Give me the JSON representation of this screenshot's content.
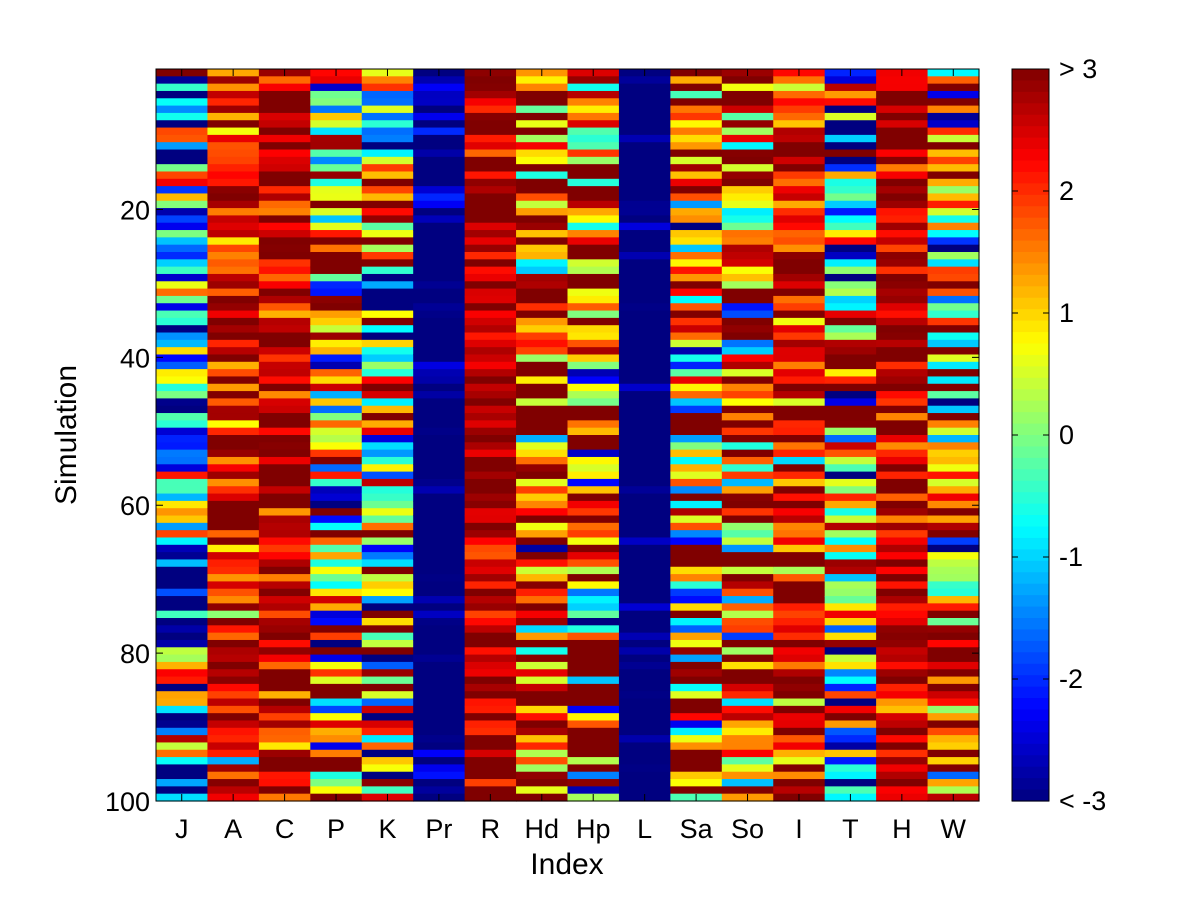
{
  "chart_data": {
    "type": "heatmap",
    "title": "",
    "xlabel": "Index",
    "ylabel": "Simulation",
    "x_categories": [
      "J",
      "A",
      "C",
      "P",
      "K",
      "Pr",
      "R",
      "Hd",
      "Hp",
      "L",
      "Sa",
      "So",
      "I",
      "T",
      "H",
      "W"
    ],
    "rows": 100,
    "y_ticks": [
      20,
      40,
      60,
      80,
      100
    ],
    "ylim": [
      1,
      100
    ],
    "y_direction": "top-to-bottom",
    "color_scale": {
      "min": -3,
      "max": 3,
      "colormap": "jet",
      "ticks": [
        3,
        2,
        1,
        0,
        -1,
        -2,
        -3
      ],
      "tick_labels": [
        "> 3",
        "2",
        "1",
        "0",
        "-1",
        "-2",
        "< -3"
      ],
      "clip_low_label": "< -3",
      "clip_high_label": "> 3"
    },
    "column_patterns": {
      "J": {
        "description": "mixed, dominated by strong negatives with scattered positives",
        "center": -1.2,
        "spread": 2.3
      },
      "A": {
        "description": "mostly strongly positive",
        "center": 2.4,
        "spread": 0.9
      },
      "C": {
        "description": "mostly strongly positive",
        "center": 2.6,
        "spread": 0.8
      },
      "P": {
        "description": "mixed",
        "center": 0.9,
        "spread": 2.2
      },
      "K": {
        "description": "mixed",
        "center": 0.2,
        "spread": 2.3
      },
      "Pr": {
        "description": "almost entirely strongly negative",
        "center": -3.2,
        "spread": 0.5
      },
      "R": {
        "description": "almost entirely strongly positive",
        "center": 2.8,
        "spread": 0.5
      },
      "Hd": {
        "description": "mostly positive",
        "center": 1.8,
        "spread": 1.6
      },
      "Hp": {
        "description": "mostly positive",
        "center": 1.5,
        "spread": 1.8
      },
      "L": {
        "description": "almost entirely strongly negative",
        "center": -3.3,
        "spread": 0.4
      },
      "Sa": {
        "description": "mostly positive, mixed",
        "center": 1.4,
        "spread": 2.0
      },
      "So": {
        "description": "mostly positive, mixed",
        "center": 1.6,
        "spread": 1.8
      },
      "I": {
        "description": "mostly strongly positive",
        "center": 2.5,
        "spread": 0.9
      },
      "T": {
        "description": "mixed, tending negative",
        "center": -0.4,
        "spread": 2.4
      },
      "H": {
        "description": "almost entirely strongly positive",
        "center": 2.6,
        "spread": 0.7
      },
      "W": {
        "description": "mixed, tending positive",
        "center": 1.1,
        "spread": 1.9
      }
    }
  }
}
